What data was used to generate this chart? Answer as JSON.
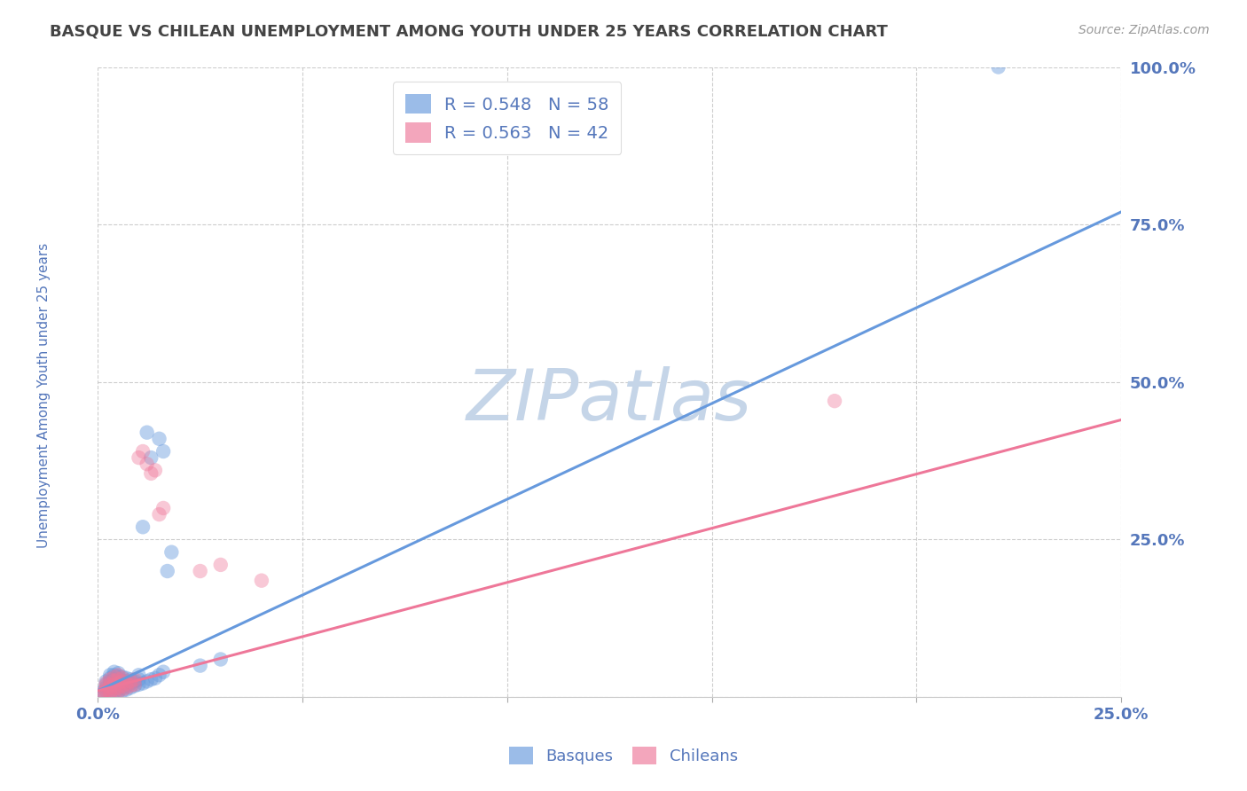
{
  "title": "BASQUE VS CHILEAN UNEMPLOYMENT AMONG YOUTH UNDER 25 YEARS CORRELATION CHART",
  "source": "Source: ZipAtlas.com",
  "ylabel": "Unemployment Among Youth under 25 years",
  "xlim": [
    0,
    0.25
  ],
  "ylim": [
    0,
    1.0
  ],
  "xticks": [
    0.0,
    0.05,
    0.1,
    0.15,
    0.2,
    0.25
  ],
  "yticks": [
    0.0,
    0.25,
    0.5,
    0.75,
    1.0
  ],
  "background_color": "#ffffff",
  "grid_color": "#c8c8c8",
  "title_color": "#444444",
  "axis_label_color": "#5577bb",
  "tick_color": "#5577bb",
  "watermark_text": "ZIPatlas",
  "watermark_color": "#c5d5e8",
  "legend_R_blue": "R = 0.548",
  "legend_N_blue": "N = 58",
  "legend_R_pink": "R = 0.563",
  "legend_N_pink": "N = 42",
  "blue_color": "#6699dd",
  "pink_color": "#ee7799",
  "blue_line_x": [
    0.0,
    0.25
  ],
  "blue_line_y": [
    0.01,
    0.77
  ],
  "pink_line_x": [
    0.0,
    0.25
  ],
  "pink_line_y": [
    0.01,
    0.44
  ],
  "blue_scatter": [
    [
      0.001,
      0.005
    ],
    [
      0.001,
      0.008
    ],
    [
      0.002,
      0.01
    ],
    [
      0.002,
      0.015
    ],
    [
      0.002,
      0.02
    ],
    [
      0.002,
      0.025
    ],
    [
      0.003,
      0.008
    ],
    [
      0.003,
      0.012
    ],
    [
      0.003,
      0.018
    ],
    [
      0.003,
      0.025
    ],
    [
      0.003,
      0.03
    ],
    [
      0.003,
      0.035
    ],
    [
      0.004,
      0.01
    ],
    [
      0.004,
      0.015
    ],
    [
      0.004,
      0.022
    ],
    [
      0.004,
      0.028
    ],
    [
      0.004,
      0.035
    ],
    [
      0.004,
      0.04
    ],
    [
      0.005,
      0.008
    ],
    [
      0.005,
      0.012
    ],
    [
      0.005,
      0.018
    ],
    [
      0.005,
      0.022
    ],
    [
      0.005,
      0.028
    ],
    [
      0.005,
      0.033
    ],
    [
      0.005,
      0.038
    ],
    [
      0.006,
      0.01
    ],
    [
      0.006,
      0.015
    ],
    [
      0.006,
      0.02
    ],
    [
      0.006,
      0.025
    ],
    [
      0.006,
      0.032
    ],
    [
      0.007,
      0.012
    ],
    [
      0.007,
      0.018
    ],
    [
      0.007,
      0.025
    ],
    [
      0.007,
      0.03
    ],
    [
      0.008,
      0.015
    ],
    [
      0.008,
      0.022
    ],
    [
      0.008,
      0.028
    ],
    [
      0.009,
      0.018
    ],
    [
      0.009,
      0.025
    ],
    [
      0.01,
      0.02
    ],
    [
      0.01,
      0.028
    ],
    [
      0.01,
      0.035
    ],
    [
      0.011,
      0.022
    ],
    [
      0.011,
      0.27
    ],
    [
      0.012,
      0.025
    ],
    [
      0.012,
      0.42
    ],
    [
      0.013,
      0.028
    ],
    [
      0.013,
      0.38
    ],
    [
      0.014,
      0.03
    ],
    [
      0.015,
      0.035
    ],
    [
      0.015,
      0.41
    ],
    [
      0.016,
      0.04
    ],
    [
      0.016,
      0.39
    ],
    [
      0.017,
      0.2
    ],
    [
      0.018,
      0.23
    ],
    [
      0.025,
      0.05
    ],
    [
      0.03,
      0.06
    ],
    [
      0.22,
      1.0
    ]
  ],
  "pink_scatter": [
    [
      0.001,
      0.003
    ],
    [
      0.001,
      0.006
    ],
    [
      0.002,
      0.008
    ],
    [
      0.002,
      0.012
    ],
    [
      0.002,
      0.018
    ],
    [
      0.002,
      0.022
    ],
    [
      0.003,
      0.005
    ],
    [
      0.003,
      0.01
    ],
    [
      0.003,
      0.015
    ],
    [
      0.003,
      0.02
    ],
    [
      0.003,
      0.028
    ],
    [
      0.004,
      0.008
    ],
    [
      0.004,
      0.013
    ],
    [
      0.004,
      0.02
    ],
    [
      0.004,
      0.026
    ],
    [
      0.004,
      0.032
    ],
    [
      0.005,
      0.01
    ],
    [
      0.005,
      0.015
    ],
    [
      0.005,
      0.022
    ],
    [
      0.005,
      0.028
    ],
    [
      0.005,
      0.035
    ],
    [
      0.006,
      0.012
    ],
    [
      0.006,
      0.018
    ],
    [
      0.006,
      0.025
    ],
    [
      0.006,
      0.03
    ],
    [
      0.007,
      0.015
    ],
    [
      0.007,
      0.022
    ],
    [
      0.008,
      0.018
    ],
    [
      0.008,
      0.025
    ],
    [
      0.009,
      0.02
    ],
    [
      0.009,
      0.028
    ],
    [
      0.01,
      0.38
    ],
    [
      0.011,
      0.39
    ],
    [
      0.012,
      0.37
    ],
    [
      0.013,
      0.355
    ],
    [
      0.014,
      0.36
    ],
    [
      0.015,
      0.29
    ],
    [
      0.016,
      0.3
    ],
    [
      0.025,
      0.2
    ],
    [
      0.03,
      0.21
    ],
    [
      0.04,
      0.185
    ],
    [
      0.18,
      0.47
    ]
  ]
}
